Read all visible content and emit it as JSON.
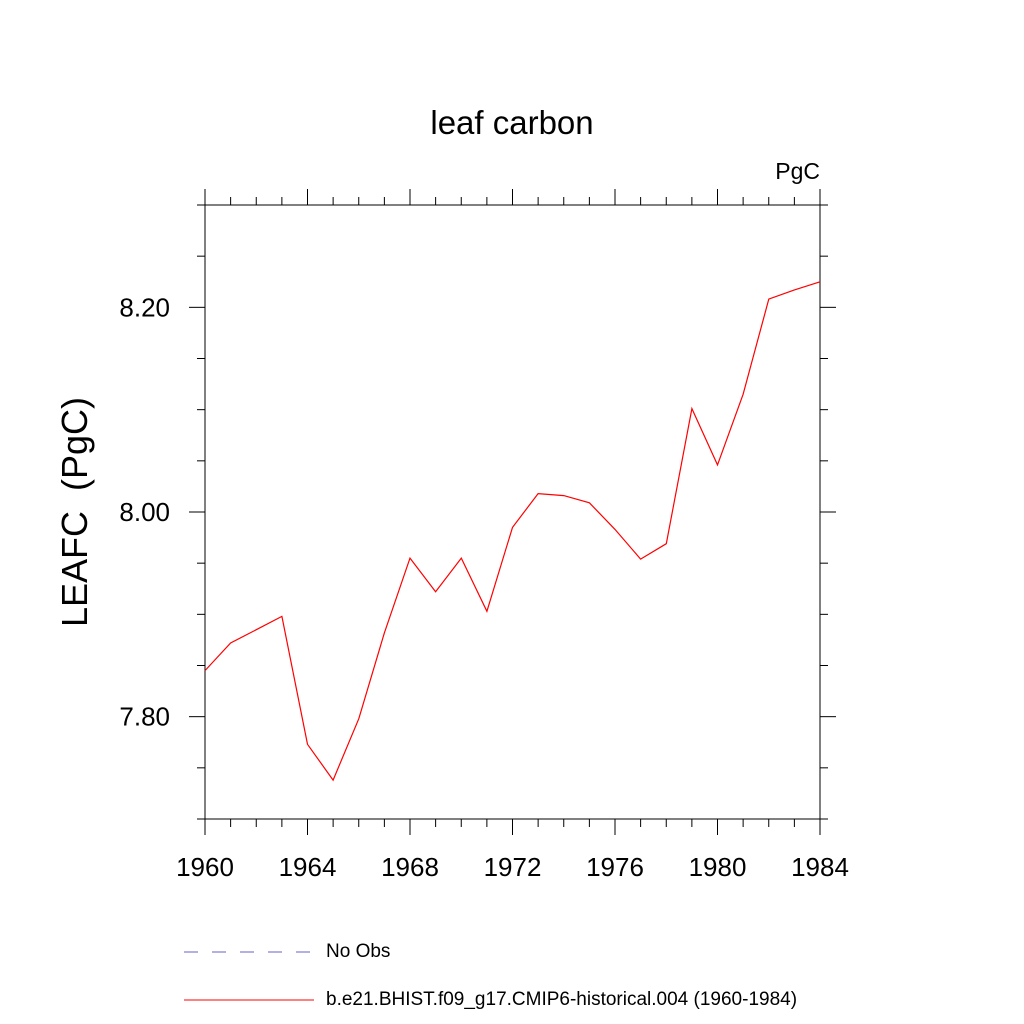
{
  "title": "leaf carbon",
  "units": "PgC",
  "chart_data": {
    "type": "line",
    "ylabel": "LEAFC  (PgC)",
    "xlabel": "",
    "xlim": [
      1960,
      1984
    ],
    "ylim": [
      7.7,
      8.3
    ],
    "x_ticks": [
      "1960",
      "1964",
      "1968",
      "1972",
      "1976",
      "1980",
      "1984"
    ],
    "y_ticks": [
      "7.80",
      "8.00",
      "8.20"
    ],
    "series": [
      {
        "name": "b.e21.BHIST.f09_g17.CMIP6-historical.004 (1960-1984)",
        "color": "#ff0000",
        "x": [
          1960,
          1961,
          1962,
          1963,
          1964,
          1965,
          1966,
          1967,
          1968,
          1969,
          1970,
          1971,
          1972,
          1973,
          1974,
          1975,
          1976,
          1977,
          1978,
          1979,
          1980,
          1981,
          1982,
          1983,
          1984
        ],
        "y": [
          7.845,
          7.872,
          7.885,
          7.898,
          7.773,
          7.738,
          7.798,
          7.882,
          7.955,
          7.922,
          7.955,
          7.903,
          7.985,
          8.018,
          8.016,
          8.009,
          7.983,
          7.954,
          7.969,
          8.101,
          8.046,
          8.115,
          8.208,
          8.217,
          8.225
        ]
      }
    ]
  },
  "legend": [
    {
      "label": "No Obs",
      "color": "#6b62c7",
      "style": "dashed"
    },
    {
      "label": "b.e21.BHIST.f09_g17.CMIP6-historical.004 (1960-1984)",
      "color": "#ff0000",
      "style": "solid"
    }
  ]
}
